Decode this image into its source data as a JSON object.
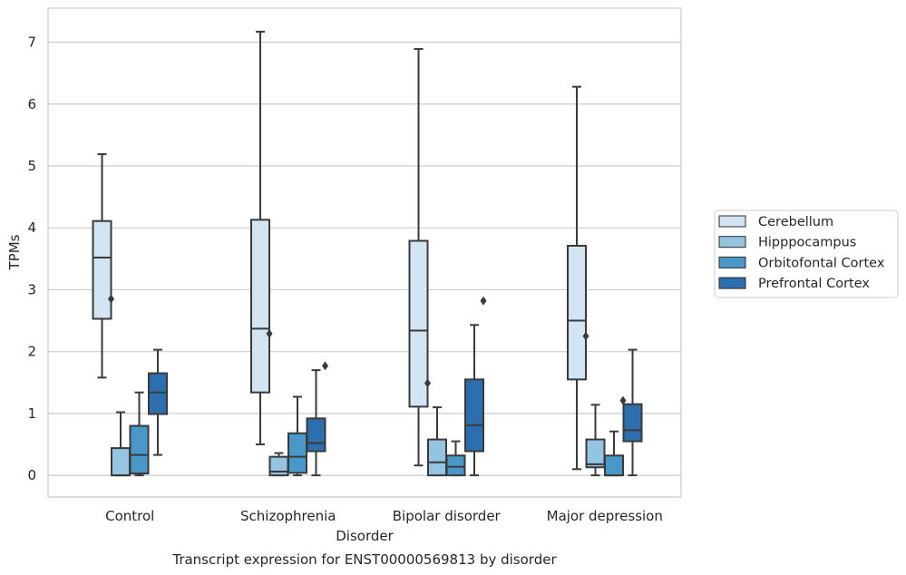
{
  "chart_data": {
    "type": "box",
    "xlabel": "Disorder",
    "ylabel": "TPMs",
    "caption": "Transcript expression for ENST00000569813 by disorder",
    "ylim": [
      -0.35,
      7.55
    ],
    "yticks": [
      0,
      1,
      2,
      3,
      4,
      5,
      6,
      7
    ],
    "grid": true,
    "legend_position": "right",
    "categories": [
      "Control",
      "Schizophrenia",
      "Bipolar disorder",
      "Major depression"
    ],
    "series": [
      {
        "name": "Cerebellum",
        "color": "#d3e4f3",
        "boxes": [
          {
            "whisker_low": 1.58,
            "q1": 2.53,
            "median": 3.52,
            "q3": 4.11,
            "whisker_high": 5.19,
            "outliers": [
              2.85
            ]
          },
          {
            "whisker_low": 0.5,
            "q1": 1.34,
            "median": 2.37,
            "q3": 4.13,
            "whisker_high": 7.17,
            "outliers": [
              2.29
            ]
          },
          {
            "whisker_low": 0.16,
            "q1": 1.11,
            "median": 2.34,
            "q3": 3.79,
            "whisker_high": 6.89,
            "outliers": [
              1.49
            ]
          },
          {
            "whisker_low": 0.1,
            "q1": 1.55,
            "median": 2.5,
            "q3": 3.71,
            "whisker_high": 6.28,
            "outliers": [
              2.25
            ]
          }
        ]
      },
      {
        "name": "Hipppocampus",
        "color": "#94c4df",
        "boxes": [
          {
            "whisker_low": 0.0,
            "q1": 0.0,
            "median": 0.0,
            "q3": 0.44,
            "whisker_high": 1.02,
            "outliers": []
          },
          {
            "whisker_low": 0.0,
            "q1": 0.0,
            "median": 0.06,
            "q3": 0.3,
            "whisker_high": 0.36,
            "outliers": []
          },
          {
            "whisker_low": 0.0,
            "q1": 0.0,
            "median": 0.21,
            "q3": 0.58,
            "whisker_high": 1.1,
            "outliers": []
          },
          {
            "whisker_low": 0.0,
            "q1": 0.13,
            "median": 0.18,
            "q3": 0.58,
            "whisker_high": 1.14,
            "outliers": []
          }
        ]
      },
      {
        "name": "Orbitofontal Cortex",
        "color": "#4a98c9",
        "boxes": [
          {
            "whisker_low": 0.0,
            "q1": 0.03,
            "median": 0.33,
            "q3": 0.8,
            "whisker_high": 1.34,
            "outliers": []
          },
          {
            "whisker_low": 0.0,
            "q1": 0.04,
            "median": 0.3,
            "q3": 0.68,
            "whisker_high": 1.27,
            "outliers": []
          },
          {
            "whisker_low": 0.0,
            "q1": 0.0,
            "median": 0.14,
            "q3": 0.32,
            "whisker_high": 0.55,
            "outliers": []
          },
          {
            "whisker_low": 0.0,
            "q1": 0.0,
            "median": 0.0,
            "q3": 0.32,
            "whisker_high": 0.71,
            "outliers": [
              1.21
            ]
          }
        ]
      },
      {
        "name": "Prefrontal Cortex",
        "color": "#2d6fae",
        "boxes": [
          {
            "whisker_low": 0.33,
            "q1": 0.99,
            "median": 1.34,
            "q3": 1.65,
            "whisker_high": 2.03,
            "outliers": []
          },
          {
            "whisker_low": 0.0,
            "q1": 0.39,
            "median": 0.52,
            "q3": 0.92,
            "whisker_high": 1.7,
            "outliers": [
              1.77
            ]
          },
          {
            "whisker_low": 0.0,
            "q1": 0.39,
            "median": 0.81,
            "q3": 1.55,
            "whisker_high": 2.43,
            "outliers": [
              2.82
            ]
          },
          {
            "whisker_low": 0.0,
            "q1": 0.55,
            "median": 0.73,
            "q3": 1.15,
            "whisker_high": 2.03,
            "outliers": []
          }
        ]
      }
    ]
  }
}
